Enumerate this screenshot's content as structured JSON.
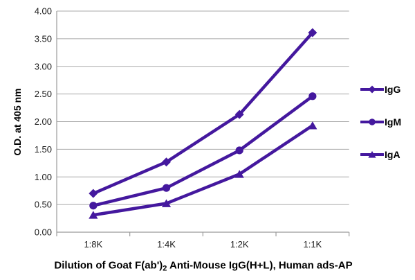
{
  "colors": {
    "series": "#44189E",
    "grid": "#A8A8A8",
    "axis": "#9B9B9B",
    "tick_text": "#1A1A1A"
  },
  "chart_data": {
    "type": "line",
    "title": "",
    "categories": [
      "1:8K",
      "1:4K",
      "1:2K",
      "1:1K"
    ],
    "series": [
      {
        "name": "IgG",
        "marker": "diamond",
        "values": [
          0.7,
          1.27,
          2.13,
          3.61
        ]
      },
      {
        "name": "IgM",
        "marker": "circle",
        "values": [
          0.48,
          0.8,
          1.48,
          2.46
        ]
      },
      {
        "name": "IgA",
        "marker": "triangle",
        "values": [
          0.31,
          0.52,
          1.05,
          1.93
        ]
      }
    ],
    "xlabel": {
      "prefix": "Dilution of Goat F(ab')",
      "subscript": "2",
      "suffix": " Anti-Mouse IgG(H+L), Human ads-AP"
    },
    "ylabel": "O.D. at 405 nm",
    "ylim": [
      0,
      4
    ],
    "ytick_labels": [
      "0.00",
      "0.50",
      "1.00",
      "1.50",
      "2.00",
      "2.50",
      "3.00",
      "3.50",
      "4.00"
    ],
    "grid": "horizontal-only",
    "legend_position": "right-middle",
    "line_width": 4.5
  }
}
